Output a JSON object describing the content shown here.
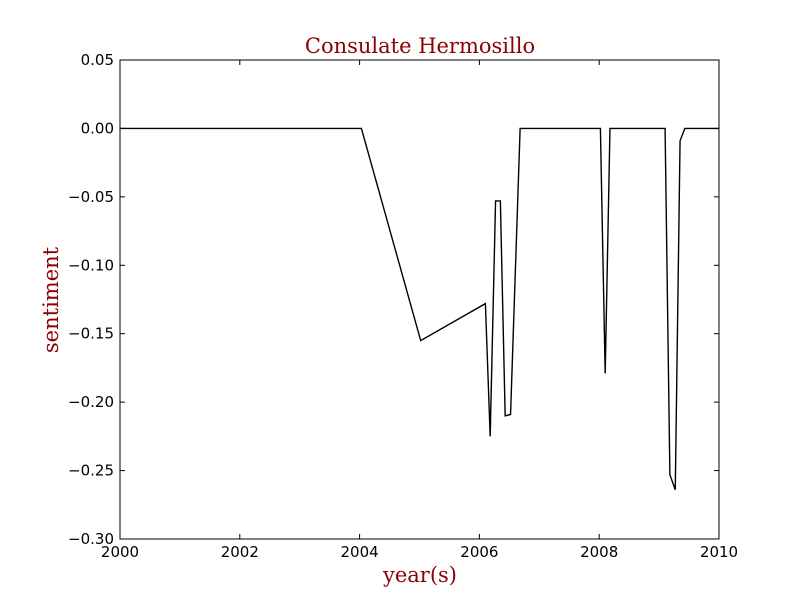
{
  "chart_data": {
    "type": "line",
    "title": "Consulate Hermosillo",
    "xlabel": "year(s)",
    "ylabel": "sentiment",
    "xlim": [
      2000,
      2010
    ],
    "ylim": [
      -0.3,
      0.05
    ],
    "x_ticks": [
      2000,
      2002,
      2004,
      2006,
      2008,
      2010
    ],
    "x_tick_labels": [
      "2000",
      "2002",
      "2004",
      "2006",
      "2008",
      "2010"
    ],
    "y_ticks": [
      0.05,
      0.0,
      -0.05,
      -0.1,
      -0.15,
      -0.2,
      -0.25,
      -0.3
    ],
    "y_tick_labels": [
      "0.05",
      "0.00",
      "−0.05",
      "−0.10",
      "−0.15",
      "−0.20",
      "−0.25",
      "−0.30"
    ],
    "grid": false,
    "label_color": "#8b0000",
    "line_color": "#000000",
    "series": [
      {
        "x": [
          2000.0,
          2004.03,
          2005.02,
          2006.1,
          2006.18,
          2006.27,
          2006.35,
          2006.43,
          2006.52,
          2006.68,
          2008.02,
          2008.1,
          2008.18,
          2009.1,
          2009.18,
          2009.27,
          2009.35,
          2009.43,
          2010.0
        ],
        "y": [
          0.0,
          0.0,
          -0.155,
          -0.128,
          -0.225,
          -0.053,
          -0.053,
          -0.21,
          -0.209,
          0.0,
          0.0,
          -0.179,
          0.0,
          0.0,
          -0.253,
          -0.264,
          -0.009,
          0.0,
          0.0
        ]
      }
    ]
  }
}
